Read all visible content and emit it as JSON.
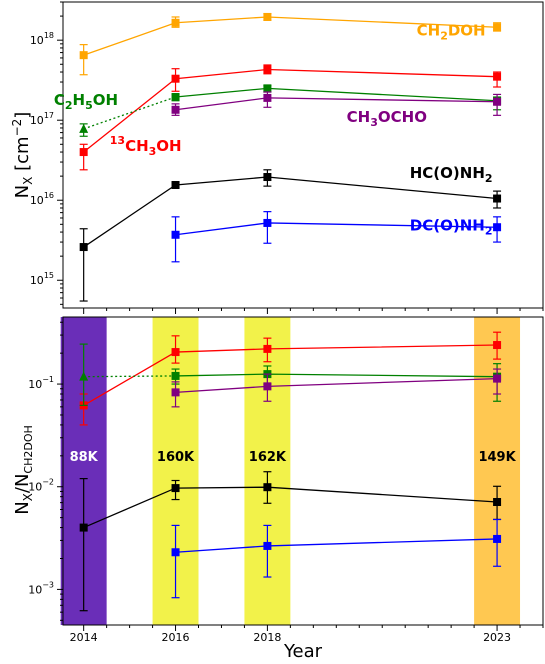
{
  "chart_data": [
    {
      "type": "scatter",
      "ylabel_main": "N",
      "ylabel_sub": "X",
      "ylabel_tail": " [cm",
      "ylabel_exp": "−2",
      "ylabel_close": "]",
      "yscale": "log",
      "ylim": [
        450000000000000.0,
        3e+18
      ],
      "xlim": [
        2013.55,
        2024.0
      ],
      "yticks": [
        {
          "value": 1000000000000000.0,
          "mant": "10",
          "exp": "15"
        },
        {
          "value": 1e+16,
          "mant": "10",
          "exp": "16"
        },
        {
          "value": 1e+17,
          "mant": "10",
          "exp": "17"
        },
        {
          "value": 1e+18,
          "mant": "10",
          "exp": "18"
        }
      ],
      "series": [
        {
          "color": "#ffa500",
          "marker": "square",
          "style": "solid",
          "x": [
            2014,
            2016,
            2018,
            2023
          ],
          "y": [
            6.5e+17,
            1.65e+18,
            1.95e+18,
            1.45e+18
          ],
          "err_lo": [
            3.7e+17,
            1.45e+18,
            1.78e+18,
            1.3e+18
          ],
          "err_hi": [
            8.8e+17,
            1.95e+18,
            2.15e+18,
            1.65e+18
          ]
        },
        {
          "color": "#ff0000",
          "marker": "square",
          "style": "solid",
          "x": [
            2014,
            2016,
            2018,
            2023
          ],
          "y": [
            4e+16,
            3.3e+17,
            4.3e+17,
            3.5e+17
          ],
          "err_lo": [
            2.4e+16,
            2.3e+17,
            3.8e+17,
            2.6e+17
          ],
          "err_hi": [
            5e+16,
            4.4e+17,
            4.9e+17,
            4e+17
          ]
        },
        {
          "color": "#008000",
          "marker": "square",
          "style": "solid",
          "x": [
            2016,
            2018,
            2023
          ],
          "y": [
            1.95e+17,
            2.5e+17,
            1.75e+17
          ],
          "err_lo": [
            1.75e+17,
            2.25e+17,
            1.35e+17
          ],
          "err_hi": [
            2.1e+17,
            2.7e+17,
            1.95e+17
          ]
        },
        {
          "color": "#800080",
          "marker": "square",
          "style": "solid",
          "x": [
            2016,
            2018,
            2023
          ],
          "y": [
            1.35e+17,
            1.9e+17,
            1.7e+17
          ],
          "err_lo": [
            1.15e+17,
            1.45e+17,
            1.15e+17
          ],
          "err_hi": [
            1.6e+17,
            2.25e+17,
            2.1e+17
          ]
        },
        {
          "color": "#000000",
          "marker": "square",
          "style": "solid",
          "x": [
            2014,
            2016,
            2018,
            2023
          ],
          "y": [
            2600000000000000.0,
            1.55e+16,
            1.95e+16,
            1.05e+16
          ],
          "err_lo": [
            550000000000000.0,
            1.45e+16,
            1.5e+16,
            8000000000000000.0
          ],
          "err_hi": [
            4400000000000000.0,
            1.65e+16,
            2.4e+16,
            1.3e+16
          ]
        },
        {
          "color": "#0000ff",
          "marker": "square",
          "style": "solid",
          "x": [
            2016,
            2018,
            2023
          ],
          "y": [
            3700000000000000.0,
            5200000000000000.0,
            4600000000000000.0
          ],
          "err_lo": [
            1700000000000000.0,
            2900000000000000.0,
            3000000000000000.0
          ],
          "err_hi": [
            6200000000000000.0,
            7200000000000000.0,
            6200000000000000.0
          ]
        },
        {
          "color": "#008000",
          "marker": "triangle",
          "style": "dotted",
          "x": [
            2014,
            2016
          ],
          "y": [
            7.8e+16,
            1.95e+17
          ],
          "err_lo": [
            6.3e+16,
            null
          ],
          "err_hi": [
            9e+16,
            null
          ]
        }
      ],
      "labels": [
        {
          "color": "#ffa500",
          "x": 2022.0,
          "y": 1.15e+18,
          "anchor": "middle",
          "parts": [
            {
              "t": "CH"
            },
            {
              "t": "2",
              "sub": true
            },
            {
              "t": "DOH"
            }
          ]
        },
        {
          "color": "#008000",
          "x": 2014.05,
          "y": 1.55e+17,
          "anchor": "middle",
          "parts": [
            {
              "t": "C"
            },
            {
              "t": "2",
              "sub": true
            },
            {
              "t": "H"
            },
            {
              "t": "5",
              "sub": true
            },
            {
              "t": "OH"
            }
          ]
        },
        {
          "color": "#800080",
          "x": 2020.6,
          "y": 9.5e+16,
          "anchor": "middle",
          "parts": [
            {
              "t": "CH"
            },
            {
              "t": "3",
              "sub": true
            },
            {
              "t": "OCHO"
            }
          ]
        },
        {
          "color": "#ff0000",
          "x": 2015.35,
          "y": 4.1e+16,
          "anchor": "middle",
          "parts": [
            {
              "t": "13",
              "sup": true
            },
            {
              "t": "CH"
            },
            {
              "t": "3",
              "sub": true
            },
            {
              "t": "OH"
            }
          ]
        },
        {
          "color": "#000000",
          "x": 2022.0,
          "y": 1.9e+16,
          "anchor": "middle",
          "parts": [
            {
              "t": "HC(O)NH"
            },
            {
              "t": "2",
              "sub": true
            }
          ]
        },
        {
          "color": "#0000ff",
          "x": 2022.0,
          "y": 4200000000000000.0,
          "anchor": "middle",
          "parts": [
            {
              "t": "DC(O)NH"
            },
            {
              "t": "2",
              "sub": true
            }
          ]
        }
      ]
    },
    {
      "type": "scatter",
      "ylabel_main": "N",
      "ylabel_sub": "X",
      "ylabel_tail": "/N",
      "ylabel_sub2": "CH2DOH",
      "xlabel": "Year",
      "yscale": "log",
      "ylim": [
        0.00045,
        0.45
      ],
      "xlim": [
        2013.55,
        2024.0
      ],
      "yticks": [
        {
          "value": 0.001,
          "mant": "10",
          "exp": "−3"
        },
        {
          "value": 0.01,
          "mant": "10",
          "exp": "−2"
        },
        {
          "value": 0.1,
          "mant": "10",
          "exp": "−1"
        }
      ],
      "xticks": [
        2014,
        2016,
        2018,
        2023
      ],
      "bands": [
        {
          "x0": 2013.5,
          "x1": 2014.5,
          "color": "#6a2eb8",
          "label": "88K",
          "label_color": "#ffffff"
        },
        {
          "x0": 2015.5,
          "x1": 2016.5,
          "color": "#f2f24a",
          "label": "160K",
          "label_color": "#000000"
        },
        {
          "x0": 2017.5,
          "x1": 2018.5,
          "color": "#f2f24a",
          "label": "162K",
          "label_color": "#000000"
        },
        {
          "x0": 2022.5,
          "x1": 2023.5,
          "color": "#ffc851",
          "label": "149K",
          "label_color": "#000000"
        }
      ],
      "band_label_y": 0.02,
      "series": [
        {
          "color": "#ff0000",
          "marker": "square",
          "style": "solid",
          "x": [
            2014,
            2016,
            2018,
            2023
          ],
          "y": [
            0.062,
            0.205,
            0.22,
            0.24
          ],
          "err_lo": [
            0.04,
            0.16,
            0.165,
            0.175
          ],
          "err_hi": [
            0.08,
            0.295,
            0.28,
            0.32
          ]
        },
        {
          "color": "#008000",
          "marker": "square",
          "style": "solid",
          "x": [
            2016,
            2018,
            2023
          ],
          "y": [
            0.12,
            0.125,
            0.118
          ],
          "err_lo": [
            0.1,
            0.1,
            0.068
          ],
          "err_hi": [
            0.14,
            0.15,
            0.158
          ]
        },
        {
          "color": "#800080",
          "marker": "square",
          "style": "solid",
          "x": [
            2016,
            2018,
            2023
          ],
          "y": [
            0.083,
            0.095,
            0.113
          ],
          "err_lo": [
            0.06,
            0.068,
            0.08
          ],
          "err_hi": [
            0.105,
            0.125,
            0.14
          ]
        },
        {
          "color": "#000000",
          "marker": "square",
          "style": "solid",
          "x": [
            2014,
            2016,
            2018,
            2023
          ],
          "y": [
            0.004,
            0.0097,
            0.0099,
            0.0071
          ],
          "err_lo": [
            0.00062,
            0.0075,
            0.0069,
            0.0048
          ],
          "err_hi": [
            0.012,
            0.0115,
            0.014,
            0.0101
          ]
        },
        {
          "color": "#0000ff",
          "marker": "square",
          "style": "solid",
          "x": [
            2016,
            2018,
            2023
          ],
          "y": [
            0.0023,
            0.00265,
            0.0031
          ],
          "err_lo": [
            0.00083,
            0.00132,
            0.00168
          ],
          "err_hi": [
            0.0042,
            0.0042,
            0.0048
          ]
        },
        {
          "color": "#008000",
          "marker": "triangle",
          "style": "dotted",
          "x": [
            2014,
            2016
          ],
          "y": [
            0.118,
            0.12
          ],
          "err_lo": [
            0.062,
            null
          ],
          "err_hi": [
            0.245,
            null
          ]
        }
      ]
    }
  ]
}
